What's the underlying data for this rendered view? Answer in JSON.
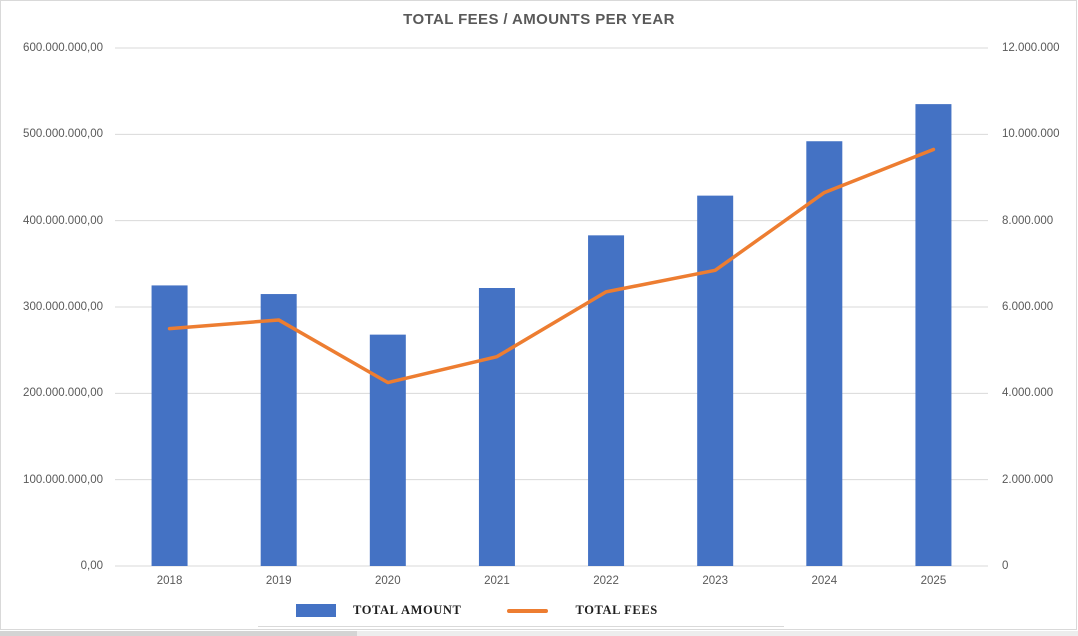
{
  "title": "TOTAL FEES / AMOUNTS PER YEAR",
  "chart_data": {
    "type": "combo",
    "title": "TOTAL FEES / AMOUNTS PER YEAR",
    "categories": [
      "2018",
      "2019",
      "2020",
      "2021",
      "2022",
      "2023",
      "2024",
      "2025"
    ],
    "series": [
      {
        "name": "TOTAL AMOUNT",
        "type": "bar",
        "axis": "left",
        "color": "#4472C4",
        "values": [
          325000000,
          315000000,
          268000000,
          322000000,
          383000000,
          429000000,
          492000000,
          535000000
        ]
      },
      {
        "name": "TOTAL FEES",
        "type": "line",
        "axis": "right",
        "color": "#ED7D31",
        "values": [
          5500000,
          5700000,
          4250000,
          4850000,
          6350000,
          6850000,
          8650000,
          9650000
        ]
      }
    ],
    "left_axis": {
      "min": 0,
      "max": 600000000,
      "ticks": [
        "600.000.000,00",
        "500.000.000,00",
        "400.000.000,00",
        "300.000.000,00",
        "200.000.000,00",
        "100.000.000,00",
        "0,00"
      ]
    },
    "right_axis": {
      "min": 0,
      "max": 12000000,
      "ticks": [
        "12.000.000",
        "10.000.000",
        "8.000.000",
        "6.000.000",
        "4.000.000",
        "2.000.000",
        "0"
      ]
    },
    "grid": true,
    "grid_color": "#d9d9d9",
    "text_color": "#595959",
    "legend_position": "bottom"
  }
}
